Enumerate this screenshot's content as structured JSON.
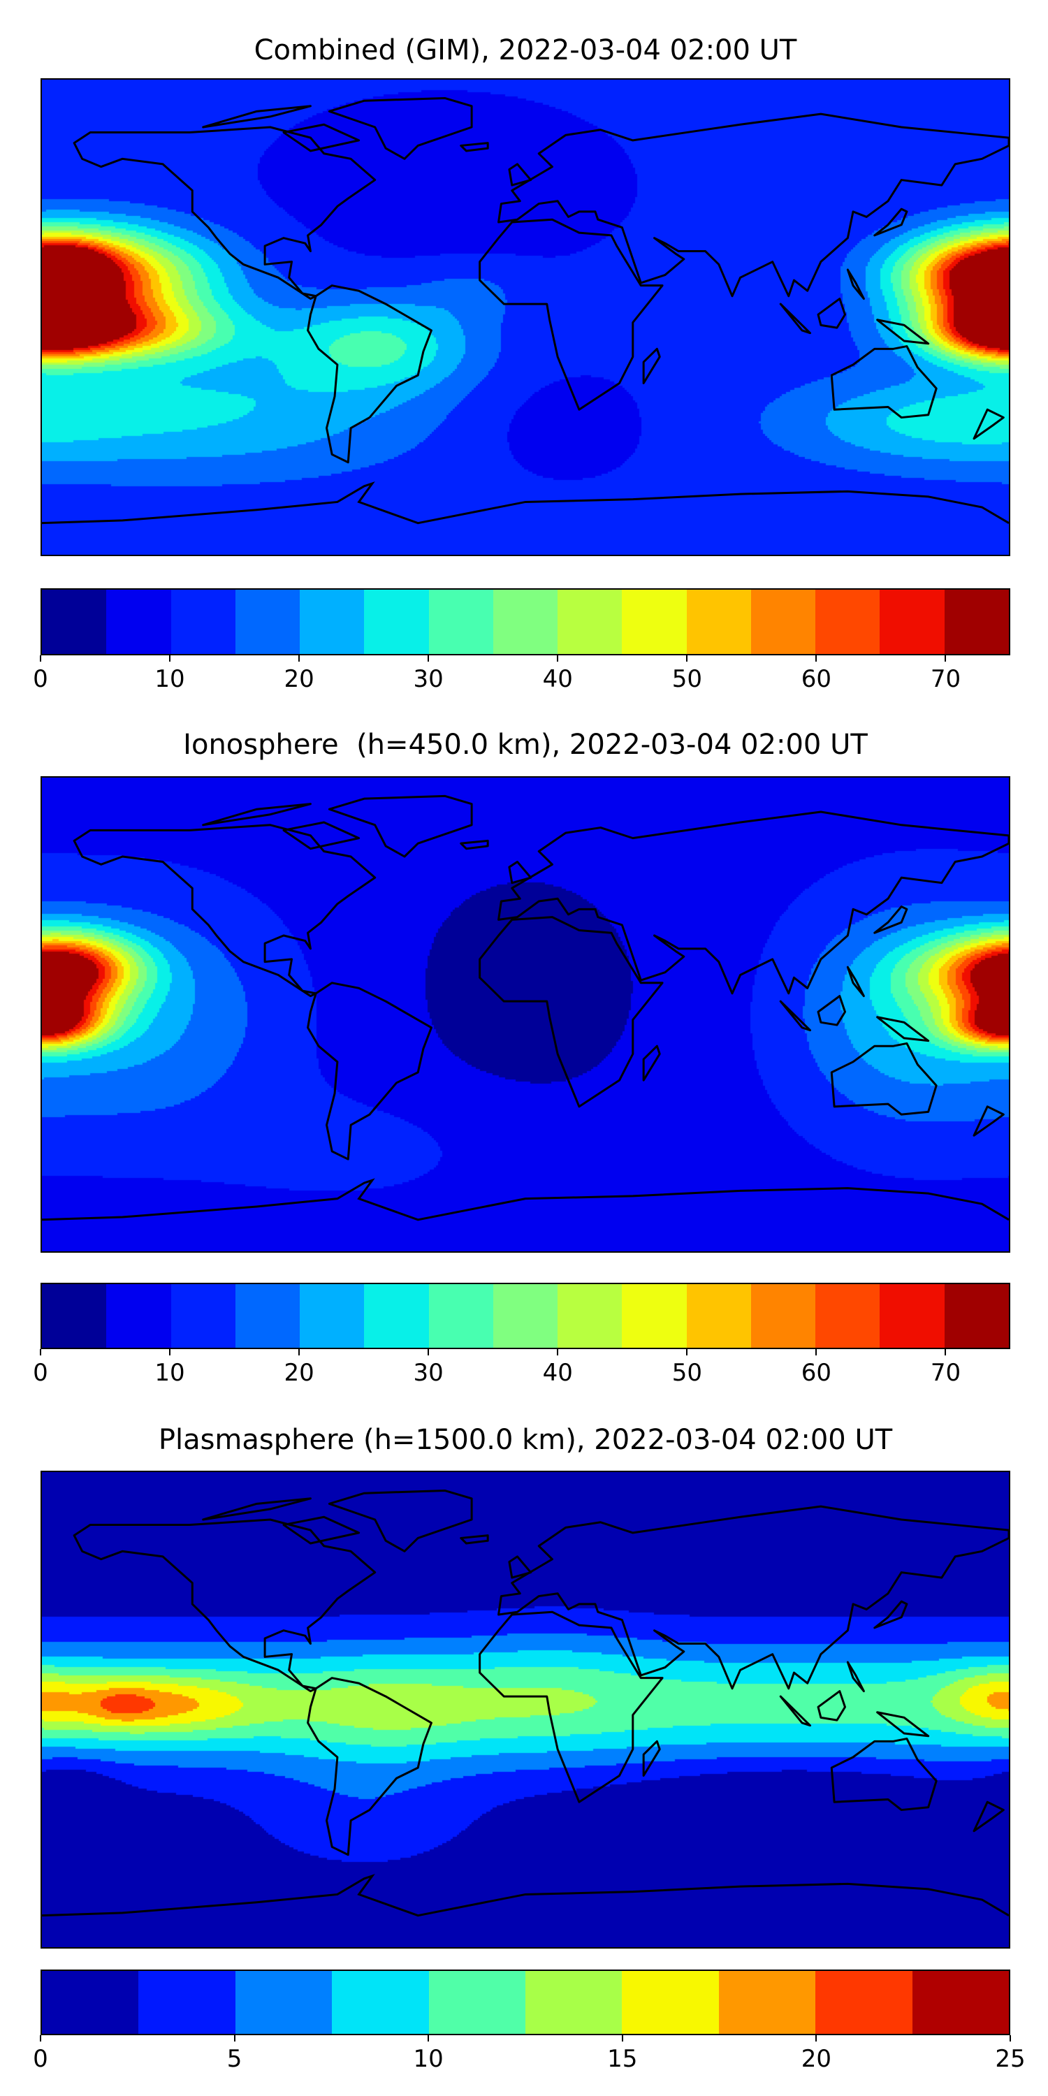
{
  "chart_data": [
    {
      "type": "heatmap",
      "title": "Combined (GIM), 2022-03-04 02:00 UT",
      "x_range_lon": [
        -180,
        180
      ],
      "y_range_lat": [
        -90,
        90
      ],
      "vmin": 0,
      "vmax": 75,
      "level_step": 5,
      "colors": [
        "#000098",
        "#0000f0",
        "#0022ff",
        "#0068ff",
        "#00b0ff",
        "#08f0e8",
        "#48ffb0",
        "#80ff80",
        "#b8ff40",
        "#eeff10",
        "#ffc400",
        "#ff8400",
        "#ff4800",
        "#f00e00",
        "#a00000"
      ],
      "ticks": [
        "0",
        "10",
        "20",
        "30",
        "40",
        "50",
        "60",
        "70"
      ],
      "tick_values": [
        0,
        10,
        20,
        30,
        40,
        50,
        60,
        70
      ],
      "base": 11,
      "peaks": [
        {
          "lon": -165,
          "lat": 15,
          "value": 50,
          "slon": 32,
          "slat": 13
        },
        {
          "lon": -160,
          "lat": -5,
          "value": 40,
          "slon": 32,
          "slat": 8
        },
        {
          "lon": -170,
          "lat": 22,
          "value": 14,
          "slon": 10,
          "slat": 5
        },
        {
          "lon": 175,
          "lat": 16,
          "value": 44,
          "slon": 22,
          "slat": 10
        },
        {
          "lon": 178,
          "lat": -5,
          "value": 42,
          "slon": 18,
          "slat": 8
        },
        {
          "lon": -55,
          "lat": -10,
          "value": 18,
          "slon": 25,
          "slat": 12
        },
        {
          "lon": -120,
          "lat": -35,
          "value": 14,
          "slon": 60,
          "slat": 18
        },
        {
          "lon": 150,
          "lat": -40,
          "value": 12,
          "slon": 40,
          "slat": 12
        },
        {
          "lon": -30,
          "lat": 50,
          "value": -5,
          "slon": 40,
          "slat": 20
        },
        {
          "lon": 10,
          "lat": -40,
          "value": -4,
          "slon": 25,
          "slat": 15
        },
        {
          "lon": -20,
          "lat": 10,
          "value": 5,
          "slon": 15,
          "slat": 8
        }
      ]
    },
    {
      "type": "heatmap",
      "title": "Ionosphere  (h=450.0 km), 2022-03-04 02:00 UT",
      "x_range_lon": [
        -180,
        180
      ],
      "y_range_lat": [
        -90,
        90
      ],
      "vmin": 0,
      "vmax": 75,
      "level_step": 5,
      "colors": [
        "#000098",
        "#0000f0",
        "#0022ff",
        "#0068ff",
        "#00b0ff",
        "#08f0e8",
        "#48ffb0",
        "#80ff80",
        "#b8ff40",
        "#eeff10",
        "#ffc400",
        "#ff8400",
        "#ff4800",
        "#f00e00",
        "#a00000"
      ],
      "ticks": [
        "0",
        "10",
        "20",
        "30",
        "40",
        "50",
        "60",
        "70"
      ],
      "tick_values": [
        0,
        10,
        20,
        30,
        40,
        50,
        60,
        70
      ],
      "base": 8,
      "peaks": [
        {
          "lon": -170,
          "lat": 18,
          "value": 38,
          "slon": 18,
          "slat": 9
        },
        {
          "lon": -175,
          "lat": 0,
          "value": 28,
          "slon": 15,
          "slat": 7
        },
        {
          "lon": -150,
          "lat": 0,
          "value": 14,
          "slon": 40,
          "slat": 30
        },
        {
          "lon": 175,
          "lat": 15,
          "value": 34,
          "slon": 22,
          "slat": 10
        },
        {
          "lon": 178,
          "lat": -5,
          "value": 34,
          "slon": 15,
          "slat": 6
        },
        {
          "lon": 140,
          "lat": 0,
          "value": 14,
          "slon": 30,
          "slat": 30
        },
        {
          "lon": 0,
          "lat": 10,
          "value": -5,
          "slon": 40,
          "slat": 40
        },
        {
          "lon": -60,
          "lat": -50,
          "value": 4,
          "slon": 40,
          "slat": 15
        }
      ]
    },
    {
      "type": "heatmap",
      "title": "Plasmasphere (h=1500.0 km), 2022-03-04 02:00 UT",
      "x_range_lon": [
        -180,
        180
      ],
      "y_range_lat": [
        -90,
        90
      ],
      "vmin": 0,
      "vmax": 25,
      "level_step": 2.5,
      "colors": [
        "#0000b0",
        "#0018ff",
        "#0080ff",
        "#00e4f8",
        "#50ffa8",
        "#a8ff48",
        "#f8f800",
        "#ff9800",
        "#ff3800",
        "#b00000"
      ],
      "ticks": [
        "0",
        "5",
        "10",
        "15",
        "20",
        "25"
      ],
      "tick_values": [
        0,
        5,
        10,
        15,
        20,
        25
      ],
      "base": 1,
      "band": {
        "lat": 2,
        "value": 10,
        "slat": 24
      },
      "peaks": [
        {
          "lon": -140,
          "lat": 2,
          "value": 8,
          "slon": 28,
          "slat": 8
        },
        {
          "lon": -150,
          "lat": 2,
          "value": 3,
          "slon": 8,
          "slat": 5
        },
        {
          "lon": -50,
          "lat": 0,
          "value": 3,
          "slon": 25,
          "slat": 14
        },
        {
          "lon": 10,
          "lat": 10,
          "value": 2,
          "slon": 25,
          "slat": 18
        },
        {
          "lon": 175,
          "lat": 5,
          "value": 5,
          "slon": 14,
          "slat": 8
        },
        {
          "lon": -170,
          "lat": -30,
          "value": -3,
          "slon": 12,
          "slat": 8
        },
        {
          "lon": 100,
          "lat": -35,
          "value": -3,
          "slon": 40,
          "slat": 12
        },
        {
          "lon": -60,
          "lat": -40,
          "value": 3,
          "slon": 30,
          "slat": 15
        }
      ]
    }
  ]
}
